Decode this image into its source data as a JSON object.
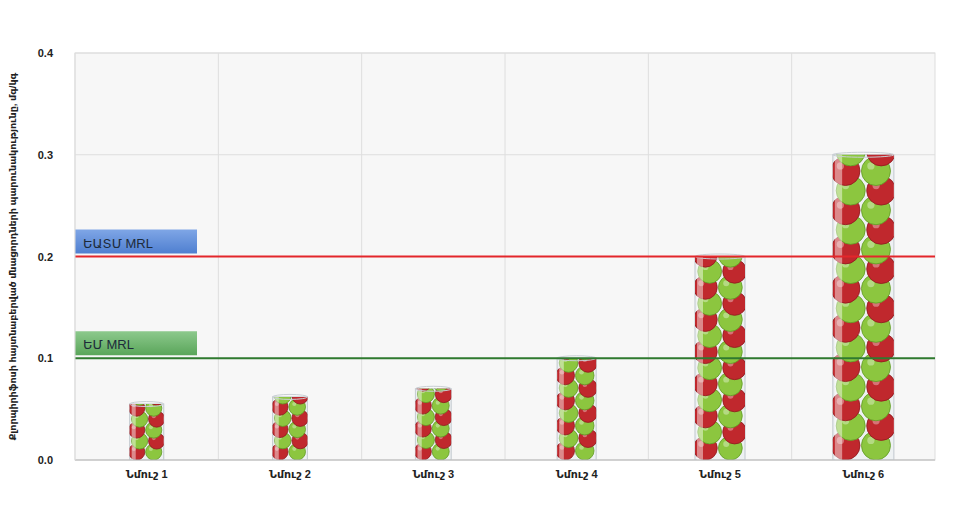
{
  "chart_data": {
    "type": "bar",
    "y_label": "Քլորպիրիֆոսի հայտնաբերված մնացորդների պարունակությունը, մգ/կգ",
    "categories": [
      "Նմուշ 1",
      "Նմուշ 2",
      "Նմուշ 3",
      "Նմուշ 4",
      "Նմուշ 5",
      "Նմուշ 6"
    ],
    "values": [
      0.055,
      0.062,
      0.07,
      0.1,
      0.2,
      0.3
    ],
    "ylim": [
      0,
      0.4
    ],
    "yticks": [
      {
        "value": 0,
        "label": "0.0"
      },
      0.1,
      0.2,
      0.3,
      0.4
    ],
    "grid": true,
    "annotations": [
      {
        "text": "ԵԱՏՄ MRL",
        "value": 0.2,
        "color": "#e3262b"
      },
      {
        "text": "ԵՄ MRL",
        "value": 0.1,
        "color": "#2f7a2f"
      }
    ]
  }
}
